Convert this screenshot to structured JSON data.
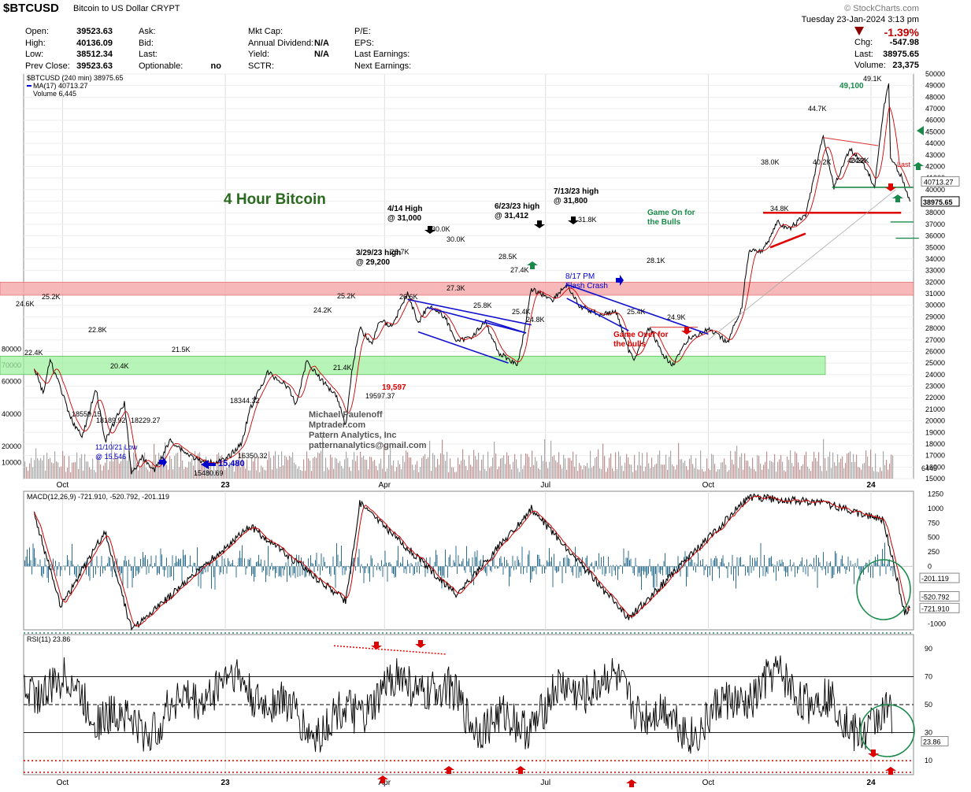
{
  "header": {
    "symbol": "$BTCUSD",
    "name": "Bitcoin to US Dollar",
    "exchange": "CRYPT",
    "source": "© StockCharts.com",
    "datetime": "Tuesday  23-Jan-2024  3:13 pm",
    "quote": {
      "col1": [
        [
          "Open:",
          "39523.63"
        ],
        [
          "High:",
          "40136.09"
        ],
        [
          "Low:",
          "38512.34"
        ],
        [
          "Prev Close:",
          "39523.63"
        ]
      ],
      "col2": [
        [
          "Ask:",
          ""
        ],
        [
          "Bid:",
          ""
        ],
        [
          "Last:",
          ""
        ],
        [
          "Optionable:",
          "no"
        ]
      ],
      "col3": [
        [
          "Mkt Cap:",
          ""
        ],
        [
          "Annual Dividend:",
          "N/A"
        ],
        [
          "Yield:",
          "N/A"
        ],
        [
          "SCTR:",
          ""
        ]
      ],
      "col4": [
        [
          "P/E:",
          ""
        ],
        [
          "EPS:",
          ""
        ],
        [
          "Last Earnings:",
          ""
        ],
        [
          "Next Earnings:",
          ""
        ]
      ],
      "col5": [
        [
          "Chg:",
          "-547.98"
        ],
        [
          "Last:",
          "38975.65"
        ],
        [
          "Volume:",
          "23,375"
        ]
      ],
      "change_pct": "-1.39%"
    }
  },
  "colors": {
    "price": "#000000",
    "ma": "#cc0000",
    "volume": "#b08080",
    "resistance_band": "#f4a6a6",
    "support_band": "#9ff09f",
    "macd_hist": "#2b6f8f",
    "rsi_line": "#000000",
    "annotation_red": "#dd0000",
    "annotation_green": "#1a8a4a",
    "annotation_blue": "#0000cc"
  },
  "chart_data": [
    {
      "type": "line",
      "panel": "price",
      "legend": [
        "$BTCUSD (240 min) 38975.65",
        "MA(17) 40713.27",
        "Volume 6,445"
      ],
      "title": "4 Hour Bitcoin",
      "y_ticks_right": [
        "50000",
        "49000",
        "48000",
        "47000",
        "46000",
        "45000",
        "44000",
        "43000",
        "42000",
        "41000",
        "40000",
        "39000",
        "38000",
        "37000",
        "36000",
        "35000",
        "34000",
        "33000",
        "32000",
        "31000",
        "30000",
        "29000",
        "28000",
        "27000",
        "26000",
        "25000",
        "24000",
        "23000",
        "22000",
        "21000",
        "20000",
        "19000",
        "18000",
        "17000",
        "16000",
        "15000"
      ],
      "y_ticks_left": [
        "80000",
        "70000",
        "60000",
        "40000",
        "20000",
        "10000"
      ],
      "y_range": [
        15000,
        50000
      ],
      "x_ticks": [
        "Oct",
        "23",
        "Apr",
        "Jul",
        "Oct",
        "24"
      ],
      "right_labels": [
        "40713.27",
        "38975.65",
        "6445"
      ],
      "series_points": [
        [
          "2022-09-15",
          24600
        ],
        [
          "2022-09-20",
          22400
        ],
        [
          "2022-09-24",
          25200
        ],
        [
          "2022-09-30",
          22800
        ],
        [
          "2022-10-05",
          20400
        ],
        [
          "2022-10-12",
          18559
        ],
        [
          "2022-10-20",
          22800
        ],
        [
          "2022-10-25",
          18189
        ],
        [
          "2022-11-01",
          20400
        ],
        [
          "2022-11-05",
          21500
        ],
        [
          "2022-11-09",
          15480
        ],
        [
          "2022-11-15",
          16800
        ],
        [
          "2022-11-22",
          15700
        ],
        [
          "2022-12-01",
          18344
        ],
        [
          "2022-12-10",
          17200
        ],
        [
          "2022-12-20",
          16350
        ],
        [
          "2023-01-01",
          16600
        ],
        [
          "2023-01-10",
          18000
        ],
        [
          "2023-01-15",
          21000
        ],
        [
          "2023-01-25",
          24200
        ],
        [
          "2023-02-05",
          23000
        ],
        [
          "2023-02-10",
          21400
        ],
        [
          "2023-02-16",
          25200
        ],
        [
          "2023-02-25",
          23400
        ],
        [
          "2023-03-05",
          22200
        ],
        [
          "2023-03-10",
          19597
        ],
        [
          "2023-03-14",
          24800
        ],
        [
          "2023-03-18",
          28000
        ],
        [
          "2023-03-25",
          26600
        ],
        [
          "2023-03-29",
          28700
        ],
        [
          "2023-04-05",
          28200
        ],
        [
          "2023-04-14",
          31000
        ],
        [
          "2023-04-20",
          28500
        ],
        [
          "2023-04-26",
          30000
        ],
        [
          "2023-05-05",
          29000
        ],
        [
          "2023-05-12",
          26800
        ],
        [
          "2023-05-20",
          27300
        ],
        [
          "2023-05-28",
          28500
        ],
        [
          "2023-06-05",
          25800
        ],
        [
          "2023-06-10",
          25400
        ],
        [
          "2023-06-15",
          24800
        ],
        [
          "2023-06-20",
          28500
        ],
        [
          "2023-06-23",
          31412
        ],
        [
          "2023-07-05",
          30500
        ],
        [
          "2023-07-13",
          31800
        ],
        [
          "2023-07-20",
          29900
        ],
        [
          "2023-08-01",
          29200
        ],
        [
          "2023-08-10",
          29400
        ],
        [
          "2023-08-17",
          26100
        ],
        [
          "2023-08-20",
          25400
        ],
        [
          "2023-08-29",
          28100
        ],
        [
          "2023-09-05",
          25700
        ],
        [
          "2023-09-11",
          24900
        ],
        [
          "2023-09-20",
          27100
        ],
        [
          "2023-10-01",
          27900
        ],
        [
          "2023-10-12",
          26800
        ],
        [
          "2023-10-20",
          29900
        ],
        [
          "2023-10-24",
          34800
        ],
        [
          "2023-11-01",
          34700
        ],
        [
          "2023-11-09",
          37200
        ],
        [
          "2023-11-15",
          36500
        ],
        [
          "2023-11-25",
          37800
        ],
        [
          "2023-12-05",
          44700
        ],
        [
          "2023-12-11",
          40200
        ],
        [
          "2023-12-20",
          43500
        ],
        [
          "2023-12-28",
          42200
        ],
        [
          "2024-01-03",
          40200
        ],
        [
          "2024-01-08",
          47000
        ],
        [
          "2024-01-11",
          49100
        ],
        [
          "2024-01-12",
          42800
        ],
        [
          "2024-01-18",
          41200
        ],
        [
          "2024-01-23",
          38975
        ]
      ]
    },
    {
      "type": "line",
      "panel": "macd",
      "legend": "MACD(12,26,9) -721.910, -520.792, -201.119",
      "y_ticks": [
        "1250",
        "1000",
        "750",
        "500",
        "250",
        "0",
        "-250",
        "-750",
        "-1000"
      ],
      "y_range": [
        -1100,
        1300
      ],
      "right_labels": [
        "-201.119",
        "-520.792",
        "-721.910"
      ],
      "series_points": [
        [
          "2022-09-15",
          900
        ],
        [
          "2022-09-30",
          -700
        ],
        [
          "2022-10-25",
          600
        ],
        [
          "2022-11-09",
          -1100
        ],
        [
          "2023-01-15",
          700
        ],
        [
          "2023-03-10",
          -600
        ],
        [
          "2023-03-18",
          1100
        ],
        [
          "2023-05-12",
          -500
        ],
        [
          "2023-06-23",
          1000
        ],
        [
          "2023-08-17",
          -900
        ],
        [
          "2023-10-24",
          1200
        ],
        [
          "2023-12-05",
          1100
        ],
        [
          "2024-01-08",
          800
        ],
        [
          "2024-01-20",
          -800
        ],
        [
          "2024-01-23",
          -721.91
        ]
      ]
    },
    {
      "type": "line",
      "panel": "rsi",
      "legend": "RSI(11) 23.86",
      "y_ticks": [
        "90",
        "70",
        "50",
        "30",
        "10"
      ],
      "y_range": [
        0,
        100
      ],
      "right_label": "23.86",
      "reference_lines": [
        70,
        50,
        30,
        10
      ]
    }
  ],
  "annotations": {
    "price": [
      "4/14 High\n@ 31,000",
      "6/23/23 high\n@ 31,412",
      "7/13/23 high\n@ 31,800",
      "3/29/23 high\n@ 29,200",
      "Game On for\nthe Bulls",
      "Game Over for\nthe bulls",
      "8/17 PM\nFlash Crash",
      "11/10/21 Low\n@ 15,546",
      "15,480",
      "19,597",
      "49,100",
      "49.1K",
      "44.7K",
      "38.0K",
      "40.2K",
      "40.2K",
      "34.8K",
      "31.8K",
      "30.0K",
      "30.0K",
      "28.5K",
      "27.4K",
      "27.3K",
      "25.8K",
      "25.4K",
      "24.8K",
      "28.7K",
      "26.6K",
      "28.1K",
      "25.4K",
      "24.9K",
      "25.2K",
      "24.6K",
      "22.4K",
      "22.8K",
      "20.4K",
      "21.5K",
      "18559.15",
      "18189.92",
      "18229.27",
      "15480.69",
      "16350.32",
      "18344.32",
      "24.2K",
      "25.2K",
      "21.4K",
      "24.2K",
      "19597.37",
      "Last"
    ],
    "credit": "Michael Paulenoff\nMptrader.com\nPattern Analytics, Inc\npatternanalytics@gmail.com"
  }
}
